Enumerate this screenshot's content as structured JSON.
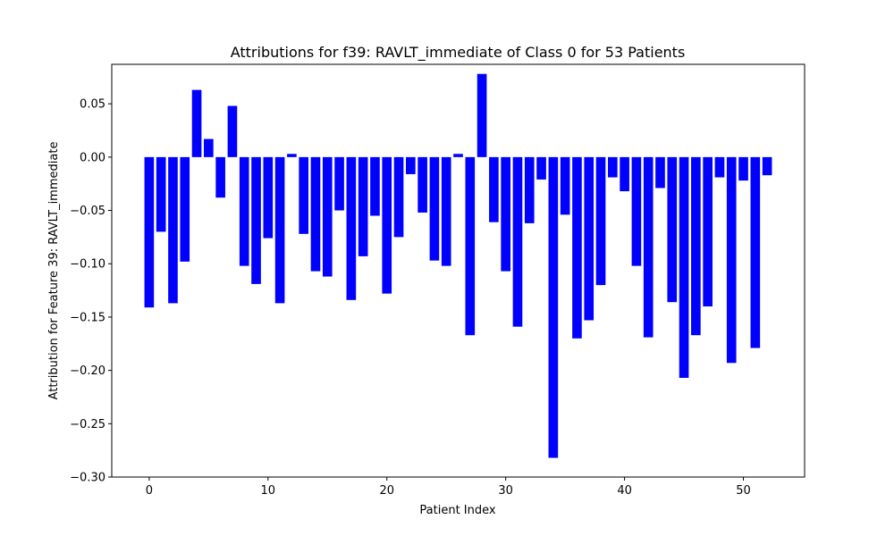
{
  "chart_data": {
    "type": "bar",
    "title": "Attributions for f39: RAVLT_immediate of Class 0 for 53 Patients",
    "xlabel": "Patient Index",
    "ylabel": "Attribution for Feature 39: RAVLT_immediate",
    "xlim": [
      -3.15,
      55.15
    ],
    "ylim": [
      -0.3,
      0.087
    ],
    "xticks": [
      0,
      10,
      20,
      30,
      40,
      50
    ],
    "yticks": [
      0.05,
      0.0,
      -0.05,
      -0.1,
      -0.15,
      -0.2,
      -0.25,
      -0.3
    ],
    "ytick_labels": [
      "0.05",
      "0.00",
      "−0.05",
      "−0.10",
      "−0.15",
      "−0.20",
      "−0.25",
      "−0.30"
    ],
    "bar_color": "#0000ff",
    "grid": false,
    "categories": [
      0,
      1,
      2,
      3,
      4,
      5,
      6,
      7,
      8,
      9,
      10,
      11,
      12,
      13,
      14,
      15,
      16,
      17,
      18,
      19,
      20,
      21,
      22,
      23,
      24,
      25,
      26,
      27,
      28,
      29,
      30,
      31,
      32,
      33,
      34,
      35,
      36,
      37,
      38,
      39,
      40,
      41,
      42,
      43,
      44,
      45,
      46,
      47,
      48,
      49,
      50,
      51,
      52
    ],
    "values": [
      -0.141,
      -0.07,
      -0.137,
      -0.098,
      0.063,
      0.017,
      -0.038,
      0.048,
      -0.102,
      -0.119,
      -0.076,
      -0.137,
      0.003,
      -0.072,
      -0.107,
      -0.112,
      -0.05,
      -0.134,
      -0.093,
      -0.055,
      -0.128,
      -0.075,
      -0.016,
      -0.052,
      -0.097,
      -0.102,
      0.003,
      -0.167,
      0.078,
      -0.061,
      -0.107,
      -0.159,
      -0.062,
      -0.021,
      -0.282,
      -0.054,
      -0.17,
      -0.153,
      -0.12,
      -0.019,
      -0.032,
      -0.102,
      -0.169,
      -0.029,
      -0.136,
      -0.207,
      -0.167,
      -0.14,
      -0.019,
      -0.193,
      -0.022,
      -0.179,
      -0.017
    ]
  }
}
